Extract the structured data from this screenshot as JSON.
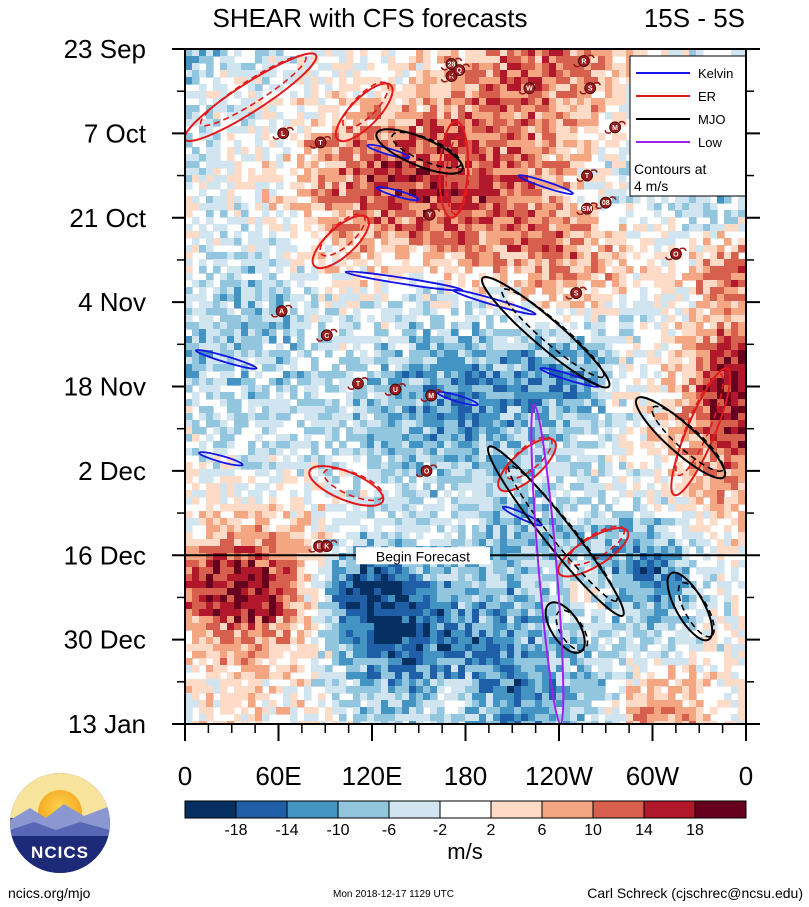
{
  "chart_data": {
    "type": "heatmap",
    "title": "SHEAR with CFS forecasts",
    "latitude_band": "15S - 5S",
    "x_axis": {
      "tick_labels": [
        "0",
        "60E",
        "120E",
        "180",
        "120W",
        "60W",
        "0"
      ],
      "longitude_range": [
        0,
        360
      ]
    },
    "y_axis": {
      "tick_labels": [
        "23 Sep",
        "7 Oct",
        "21 Oct",
        "4 Nov",
        "18 Nov",
        "2 Dec",
        "16 Dec",
        "30 Dec",
        "13 Jan"
      ],
      "day_range": [
        0,
        112
      ]
    },
    "colorbar": {
      "unit": "m/s",
      "levels": [
        "-18",
        "-14",
        "-10",
        "-6",
        "-2",
        "2",
        "6",
        "10",
        "14",
        "18"
      ],
      "colors": [
        "#053061",
        "#1f5fa8",
        "#4393c3",
        "#92c5de",
        "#d1e5f0",
        "#ffffff",
        "#fddbc7",
        "#f4a582",
        "#d6604d",
        "#b2182b",
        "#67001f"
      ]
    },
    "forecast_start_label": "Begin Forecast",
    "forecast_start_day": 84,
    "legend": [
      {
        "label": "Kelvin",
        "color": "#1515e6"
      },
      {
        "label": "ER",
        "color": "#e31a1c"
      },
      {
        "label": "MJO",
        "color": "#000000"
      },
      {
        "label": "Low",
        "color": "#a020f0"
      }
    ],
    "contour_note_line1": "Contours at",
    "contour_note_line2": "4 m/s",
    "storms": [
      {
        "label": "28",
        "lon": 171,
        "day": 2.5
      },
      {
        "label": "K",
        "lon": 171,
        "day": 4.5
      },
      {
        "label": "Q",
        "lon": 176,
        "day": 3.5
      },
      {
        "label": "W",
        "lon": 221,
        "day": 6.5
      },
      {
        "label": "R",
        "lon": 256,
        "day": 2
      },
      {
        "label": "S",
        "lon": 260,
        "day": 6.5
      },
      {
        "label": "M",
        "lon": 276,
        "day": 13
      },
      {
        "label": "L",
        "lon": 63,
        "day": 14
      },
      {
        "label": "T",
        "lon": 87,
        "day": 15.5
      },
      {
        "label": "T",
        "lon": 258,
        "day": 21
      },
      {
        "label": "SM",
        "lon": 258,
        "day": 26.5
      },
      {
        "label": "08",
        "lon": 270,
        "day": 25.5
      },
      {
        "label": "Y",
        "lon": 157,
        "day": 27.5
      },
      {
        "label": "O",
        "lon": 315,
        "day": 34
      },
      {
        "label": "S",
        "lon": 251,
        "day": 40.5
      },
      {
        "label": "A",
        "lon": 62,
        "day": 43.5
      },
      {
        "label": "C",
        "lon": 91,
        "day": 47.5
      },
      {
        "label": "T",
        "lon": 111,
        "day": 55.5
      },
      {
        "label": "U",
        "lon": 135,
        "day": 56.5
      },
      {
        "label": "M",
        "lon": 158,
        "day": 57.5
      },
      {
        "label": "O",
        "lon": 155,
        "day": 70
      },
      {
        "label": "E",
        "lon": 86,
        "day": 82.5
      },
      {
        "label": "K",
        "lon": 91,
        "day": 82.5
      }
    ],
    "series": [
      {
        "name": "Kelvin",
        "segments": [
          {
            "start": [
              117,
              16
            ],
            "end": [
              144,
              18
            ]
          },
          {
            "start": [
              123,
              23
            ],
            "end": [
              150,
              25
            ]
          },
          {
            "start": [
              214,
              21
            ],
            "end": [
              249,
              24
            ]
          },
          {
            "start": [
              103,
              37
            ],
            "end": [
              178,
              40
            ]
          },
          {
            "start": [
              172,
              40
            ],
            "end": [
              225,
              44
            ]
          },
          {
            "start": [
              7,
              50
            ],
            "end": [
              46,
              53
            ]
          },
          {
            "start": [
              228,
              53
            ],
            "end": [
              266,
              56
            ]
          },
          {
            "start": [
              162,
              57
            ],
            "end": [
              188,
              59
            ]
          },
          {
            "start": [
              9,
              67
            ],
            "end": [
              37,
              69
            ]
          },
          {
            "start": [
              204,
              76
            ],
            "end": [
              229,
              79
            ]
          }
        ]
      },
      {
        "name": "ER",
        "segments": [
          {
            "start": [
              0,
              15
            ],
            "end": [
              84,
              1
            ]
          },
          {
            "start": [
              98,
              15
            ],
            "end": [
              132,
              6
            ]
          },
          {
            "start": [
              174,
              12
            ],
            "end": [
              171,
              28
            ]
          },
          {
            "start": [
              83,
              36
            ],
            "end": [
              117,
              28
            ]
          },
          {
            "start": [
              80,
              70
            ],
            "end": [
              127,
              75
            ]
          },
          {
            "start": [
              202,
              73
            ],
            "end": [
              237,
              65
            ]
          },
          {
            "start": [
              314,
              74
            ],
            "end": [
              348,
              53
            ]
          },
          {
            "start": [
              240,
              87
            ],
            "end": [
              284,
              80
            ]
          }
        ]
      },
      {
        "name": "MJO",
        "segments": [
          {
            "start": [
              123,
              14
            ],
            "end": [
              178,
              20
            ]
          },
          {
            "start": [
              191,
              38
            ],
            "end": [
              272,
              56
            ]
          },
          {
            "start": [
              195,
              66
            ],
            "end": [
              281,
              94
            ]
          },
          {
            "start": [
              290,
              58
            ],
            "end": [
              346,
              71
            ]
          },
          {
            "start": [
              234,
              92
            ],
            "end": [
              254,
              100
            ]
          },
          {
            "start": [
              312,
              87
            ],
            "end": [
              336,
              98
            ]
          }
        ]
      },
      {
        "name": "Low",
        "segments": [
          {
            "start": [
              224,
              59
            ],
            "end": [
              241,
              112
            ]
          }
        ]
      }
    ]
  },
  "footer": {
    "logo_text": "NCICS",
    "url": "ncics.org/mjo",
    "timestamp": "Mon 2018-12-17 1129 UTC",
    "author": "Carl Schreck (cjschrec@ncsu.edu)"
  }
}
